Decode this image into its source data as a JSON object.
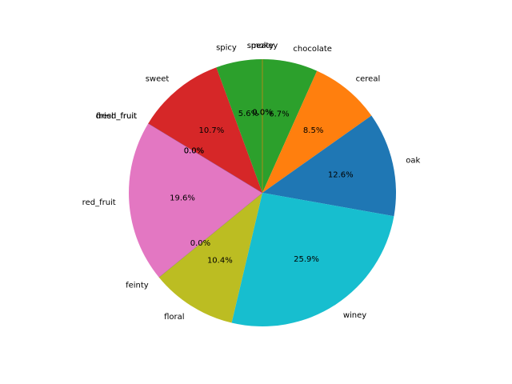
{
  "chart_data": {
    "type": "pie",
    "start_angle_deg": 90,
    "direction": "clockwise",
    "slices": [
      {
        "label": "peaty",
        "percent": 0.0,
        "pct_text": "0.0%",
        "color": "#bcbd22"
      },
      {
        "label": "chocolate",
        "percent": 6.7,
        "pct_text": "6.7%",
        "color": "#2ca02c"
      },
      {
        "label": "cereal",
        "percent": 8.5,
        "pct_text": "8.5%",
        "color": "#ff7f0e"
      },
      {
        "label": "oak",
        "percent": 12.6,
        "pct_text": "12.6%",
        "color": "#1f77b4"
      },
      {
        "label": "winey",
        "percent": 25.9,
        "pct_text": "25.9%",
        "color": "#17becf"
      },
      {
        "label": "floral",
        "percent": 10.4,
        "pct_text": "10.4%",
        "color": "#bcbd22"
      },
      {
        "label": "feinty",
        "percent": 0.0,
        "pct_text": "0.0%",
        "color": "#7f7f7f"
      },
      {
        "label": "red_fruit",
        "percent": 19.6,
        "pct_text": "19.6%",
        "color": "#e377c2"
      },
      {
        "label": "dried_fruit",
        "percent": 0.0,
        "pct_text": "0.0%",
        "color": "#8c564b"
      },
      {
        "label": "fresh_fruit",
        "percent": 0.0,
        "pct_text": "0.0%",
        "color": "#9467bd"
      },
      {
        "label": "sweet",
        "percent": 10.7,
        "pct_text": "10.7%",
        "color": "#d62728"
      },
      {
        "label": "spicy",
        "percent": 5.6,
        "pct_text": "5.6%",
        "color": "#2ca02c"
      },
      {
        "label": "smokey",
        "percent": 0.0,
        "pct_text": "0.0%",
        "color": "#ff7f0e"
      }
    ]
  }
}
